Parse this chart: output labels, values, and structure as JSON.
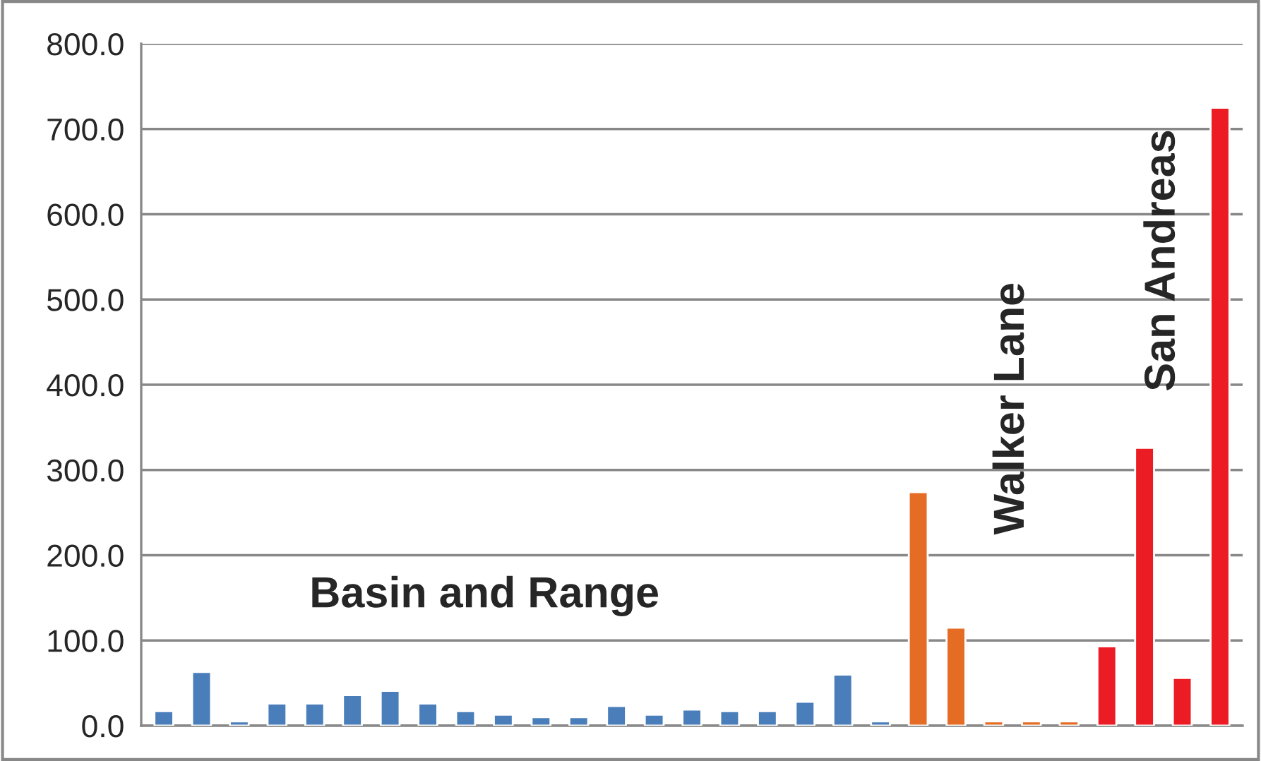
{
  "chart_data": {
    "type": "bar",
    "categories": [
      null,
      null,
      null,
      null,
      null,
      null,
      null,
      null,
      null,
      null,
      null,
      null,
      null,
      null,
      null,
      null,
      null,
      null,
      null,
      null,
      null,
      null,
      null,
      null,
      null,
      null,
      null,
      null,
      null
    ],
    "values": [
      17,
      63,
      5,
      26,
      26,
      36,
      41,
      26,
      17,
      13,
      10,
      10,
      23,
      13,
      19,
      17,
      17,
      28,
      60,
      5,
      274,
      115,
      5,
      5,
      5,
      93,
      326,
      56,
      725
    ],
    "colors": [
      "#4a7ebb",
      "#4a7ebb",
      "#4a7ebb",
      "#4a7ebb",
      "#4a7ebb",
      "#4a7ebb",
      "#4a7ebb",
      "#4a7ebb",
      "#4a7ebb",
      "#4a7ebb",
      "#4a7ebb",
      "#4a7ebb",
      "#4a7ebb",
      "#4a7ebb",
      "#4a7ebb",
      "#4a7ebb",
      "#4a7ebb",
      "#4a7ebb",
      "#4a7ebb",
      "#4a7ebb",
      "#e46c24",
      "#e46c24",
      "#e46c24",
      "#e46c24",
      "#e46c24",
      "#ec1c24",
      "#ec1c24",
      "#ec1c24",
      "#ec1c24"
    ],
    "ylim": [
      0,
      800
    ],
    "yticks": [
      {
        "value": 0,
        "label": "0.0"
      },
      {
        "value": 100,
        "label": "100.0"
      },
      {
        "value": 200,
        "label": "200.0"
      },
      {
        "value": 300,
        "label": "300.0"
      },
      {
        "value": 400,
        "label": "400.0"
      },
      {
        "value": 500,
        "label": "500.0"
      },
      {
        "value": 600,
        "label": "600.0"
      },
      {
        "value": 700,
        "label": "700.0"
      },
      {
        "value": 800,
        "label": "800.0"
      }
    ],
    "grid": "y",
    "tick_labels": "y",
    "annotations": [
      "Basin and Range",
      "Walker Lane",
      "San Andreas"
    ]
  }
}
